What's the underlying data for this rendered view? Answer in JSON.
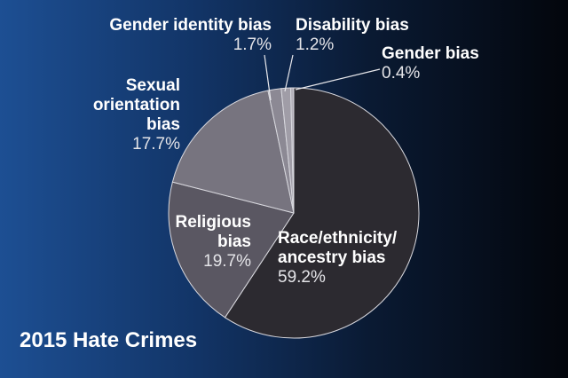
{
  "chart_data": {
    "type": "pie",
    "title": "2015 Hate Crimes",
    "categories": [
      "Race/ethnicity/\nancestry bias",
      "Religious\nbias",
      "Sexual\norientation\nbias",
      "Gender identity bias",
      "Disability bias",
      "Gender bias"
    ],
    "values": [
      59.2,
      19.7,
      17.7,
      1.7,
      1.2,
      0.4
    ],
    "value_labels": [
      "59.2%",
      "19.7%",
      "17.7%",
      "1.7%",
      "1.2%",
      "0.4%"
    ],
    "colors": [
      "#2c2a30",
      "#5a5762",
      "#77747f",
      "#8c8994",
      "#a09da7",
      "#b4b1ba"
    ]
  }
}
